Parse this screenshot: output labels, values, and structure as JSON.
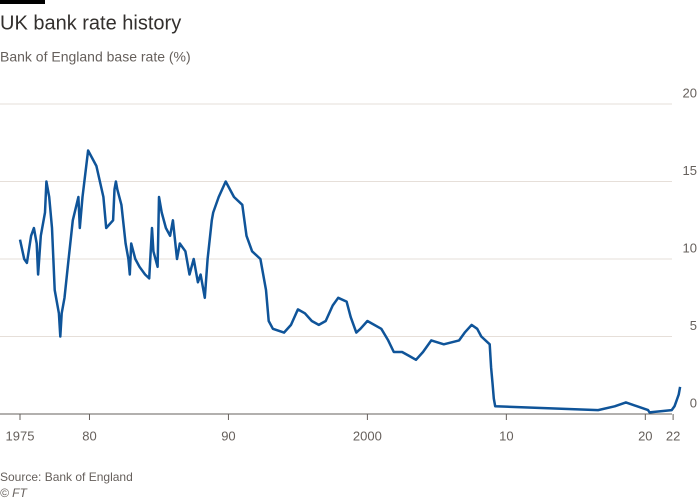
{
  "chart_data": {
    "type": "line",
    "title": "UK bank rate history",
    "subtitle": "Bank of England base rate (%)",
    "source": "Source: Bank of England",
    "credit": "© FT",
    "x": [
      1975.0,
      1975.3,
      1975.5,
      1975.8,
      1976.0,
      1976.2,
      1976.3,
      1976.5,
      1976.8,
      1976.9,
      1977.1,
      1977.3,
      1977.5,
      1977.8,
      1977.9,
      1978.0,
      1978.2,
      1978.5,
      1978.8,
      1979.2,
      1979.3,
      1979.5,
      1979.9,
      1980.5,
      1981.0,
      1981.2,
      1981.7,
      1981.8,
      1981.9,
      1982.0,
      1982.3,
      1982.6,
      1982.8,
      1982.9,
      1983.0,
      1983.3,
      1983.6,
      1984.0,
      1984.3,
      1984.5,
      1984.6,
      1984.9,
      1985.0,
      1985.2,
      1985.5,
      1985.8,
      1986.0,
      1986.3,
      1986.5,
      1986.9,
      1987.2,
      1987.5,
      1987.8,
      1988.0,
      1988.3,
      1988.5,
      1988.8,
      1988.9,
      1989.3,
      1989.8,
      1990.4,
      1991.0,
      1991.3,
      1991.7,
      1992.3,
      1992.7,
      1992.9,
      1993.2,
      1994.0,
      1994.5,
      1995.0,
      1995.5,
      1996.0,
      1996.5,
      1997.0,
      1997.5,
      1997.9,
      1998.5,
      1998.8,
      1999.2,
      1999.5,
      2000.0,
      2001.0,
      2001.5,
      2001.9,
      2002.5,
      2003.0,
      2003.5,
      2004.0,
      2004.6,
      2005.5,
      2006.6,
      2007.0,
      2007.5,
      2007.9,
      2008.2,
      2008.8,
      2008.9,
      2009.0,
      2009.1,
      2009.2,
      2016.6,
      2017.8,
      2018.6,
      2020.2,
      2020.3,
      2021.9,
      2022.1,
      2022.2,
      2022.3,
      2022.4,
      2022.5
    ],
    "series": [
      {
        "name": "Bank rate",
        "color": "#0f5499",
        "values": [
          11.25,
          10,
          9.75,
          11.5,
          12,
          11,
          9,
          11.5,
          13,
          15,
          14,
          12,
          8,
          6.5,
          5,
          6.5,
          7.5,
          10,
          12.5,
          14,
          12,
          14,
          17,
          16,
          14,
          12,
          12.5,
          14.5,
          15,
          14.5,
          13.5,
          11,
          10,
          9,
          11,
          10,
          9.5,
          9,
          8.75,
          12,
          10.5,
          9.5,
          14,
          13,
          12,
          11.5,
          12.5,
          10,
          11,
          10.5,
          9,
          10,
          8.5,
          9,
          7.5,
          10,
          12.5,
          13,
          14,
          15,
          14,
          13.5,
          11.5,
          10.5,
          10,
          8,
          6,
          5.5,
          5.25,
          5.75,
          6.75,
          6.5,
          6,
          5.75,
          6,
          7,
          7.5,
          7.25,
          6.25,
          5.25,
          5.5,
          6,
          5.5,
          4.75,
          4,
          4,
          3.75,
          3.5,
          4,
          4.75,
          4.5,
          4.75,
          5.25,
          5.75,
          5.5,
          5,
          4.5,
          3,
          2,
          1,
          0.5,
          0.25,
          0.5,
          0.75,
          0.25,
          0.1,
          0.25,
          0.5,
          0.75,
          1,
          1.25,
          1.75
        ]
      }
    ],
    "xlim": [
      1975,
      2023
    ],
    "xticks": [
      1975,
      {
        "value": 1980,
        "label": "80"
      },
      {
        "value": 1990,
        "label": "90"
      },
      2000,
      {
        "value": 2010,
        "label": "10"
      },
      {
        "value": 2020,
        "label": "20"
      },
      {
        "value": 2022,
        "label": "22"
      }
    ],
    "ylim": [
      0,
      20
    ],
    "yticks": [
      0,
      5,
      10,
      15,
      20
    ],
    "grid": true
  }
}
